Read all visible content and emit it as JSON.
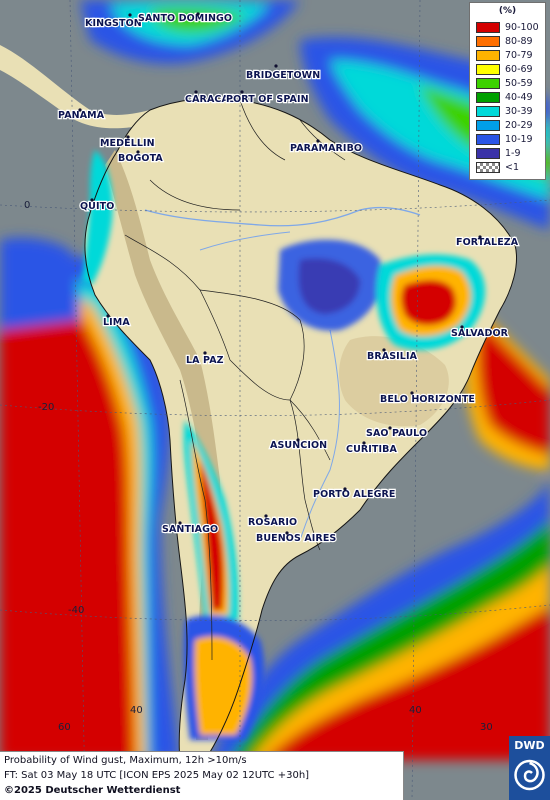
{
  "map": {
    "region": "South America",
    "field": "probability-of-wind-gust-above-10ms",
    "cities": [
      {
        "name": "KINGSTON"
      },
      {
        "name": "SANTO DOMINGO"
      },
      {
        "name": "BRIDGETOWN"
      },
      {
        "name": "CARACAS"
      },
      {
        "name": "PORT OF SPAIN"
      },
      {
        "name": "PANAMA"
      },
      {
        "name": "MEDELLIN"
      },
      {
        "name": "BOGOTA"
      },
      {
        "name": "PARAMARIBO"
      },
      {
        "name": "QUITO"
      },
      {
        "name": "FORTALEZA"
      },
      {
        "name": "LIMA"
      },
      {
        "name": "SALVADOR"
      },
      {
        "name": "BRASILIA"
      },
      {
        "name": "LA PAZ"
      },
      {
        "name": "BELO HORIZONTE"
      },
      {
        "name": "SAO PAULO"
      },
      {
        "name": "ASUNCION"
      },
      {
        "name": "CURITIBA"
      },
      {
        "name": "PORTO ALEGRE"
      },
      {
        "name": "SANTIAGO"
      },
      {
        "name": "ROSARIO"
      },
      {
        "name": "BUENOS AIRES"
      }
    ],
    "grid_labels": [
      "0",
      "-20",
      "-40",
      "60",
      "40",
      "40",
      "30"
    ]
  },
  "legend": {
    "unit": "(%)",
    "entries": [
      {
        "label": "90-100",
        "color": "#d40000"
      },
      {
        "label": "80-89",
        "color": "#ff6f00"
      },
      {
        "label": "70-79",
        "color": "#ffb300"
      },
      {
        "label": "60-69",
        "color": "#ffff00"
      },
      {
        "label": "50-59",
        "color": "#3cd200"
      },
      {
        "label": "40-49",
        "color": "#00a000"
      },
      {
        "label": "30-39",
        "color": "#00d9d9"
      },
      {
        "label": "20-29",
        "color": "#009fe8"
      },
      {
        "label": "10-19",
        "color": "#2a55e6"
      },
      {
        "label": "1-9",
        "color": "#3a32a8"
      },
      {
        "label": "<1",
        "pattern": "checker"
      }
    ]
  },
  "footer": {
    "line1": "Probability of Wind gust, Maximum, 12h >10m/s",
    "line2": "FT: Sat 03 May 18 UTC [ICON EPS 2025 May 02 12UTC +30h]",
    "copyright": "©2025 Deutscher Wetterdienst"
  },
  "logo": {
    "text": "DWD"
  }
}
